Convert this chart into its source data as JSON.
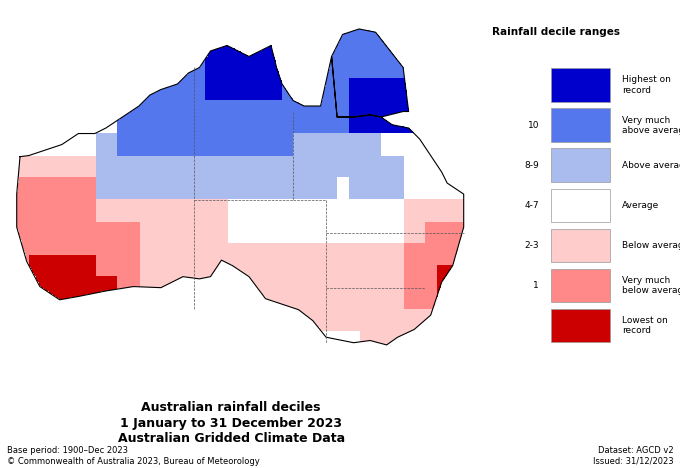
{
  "title_line1": "Australian rainfall deciles",
  "title_line2": "1 January to 31 December 2023",
  "title_line3": "Australian Gridded Climate Data",
  "base_period": "Base period: 1900–Dec 2023",
  "dataset": "Dataset: AGCD v2",
  "copyright": "© Commonwealth of Australia 2023, Bureau of Meteorology",
  "issued": "Issued: 31/12/2023",
  "legend_title": "Rainfall decile ranges",
  "legend_labels": [
    "Highest on\nrecord",
    "Very much\nabove average",
    "Above average",
    "Average",
    "Below average",
    "Very much\nbelow average",
    "Lowest on\nrecord"
  ],
  "legend_deciles": [
    "",
    "10",
    "8-9",
    "4-7",
    "2-3",
    "1",
    ""
  ],
  "colors": {
    "highest": "#0000cc",
    "very_much_above": "#5577ee",
    "above": "#aabbee",
    "average": "#ffffff",
    "below": "#ffcccc",
    "very_much_below": "#ff8888",
    "lowest": "#cc0000"
  },
  "background_color": "#ffffff",
  "figsize": [
    6.8,
    4.68
  ],
  "dpi": 100
}
